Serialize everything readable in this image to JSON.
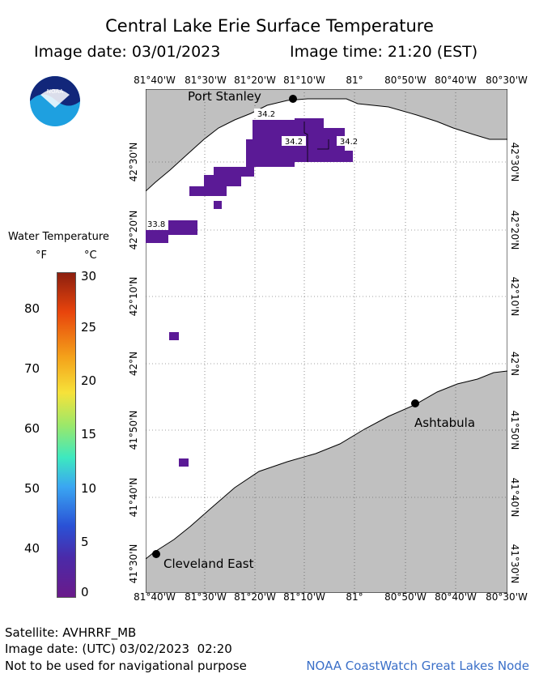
{
  "title": "Central Lake Erie Surface Temperature",
  "image_date_label": "Image date: 03/01/2023",
  "image_time_label": "Image time: 21:20 (EST)",
  "logo_text": "NOAA",
  "lon_labels": [
    "81°40'W",
    "81°30'W",
    "81°20'W",
    "81°10'W",
    "81°",
    "80°50'W",
    "80°40'W",
    "80°30'W"
  ],
  "lat_labels": [
    "42°30'N",
    "42°20'N",
    "42°10'N",
    "42°N",
    "41°50'N",
    "41°40'N",
    "41°30'N"
  ],
  "places": {
    "port_stanley": "Port Stanley",
    "ashtabula": "Ashtabula",
    "cleveland_east": "Cleveland East"
  },
  "temp_labels": [
    "34.2",
    "34.2",
    "34.2",
    "33.8"
  ],
  "legend": {
    "title": "Water Temperature",
    "unit_f": "°F",
    "unit_c": "°C",
    "f_ticks": [
      "80",
      "70",
      "60",
      "50",
      "40"
    ],
    "c_ticks": [
      "30",
      "25",
      "20",
      "15",
      "10",
      "5",
      "0"
    ]
  },
  "footer": {
    "satellite": "Satellite: AVHRRF_MB",
    "utc_date": "Image date: (UTC) 03/02/2023  02:20",
    "disclaimer": "Not to be used for navigational purpose",
    "credit": "NOAA CoastWatch Great Lakes Node"
  },
  "colors": {
    "land": "#c0c0c0",
    "water": "#ffffff",
    "cold_pixel": "#5b1a96",
    "credit": "#3a6fc8"
  }
}
